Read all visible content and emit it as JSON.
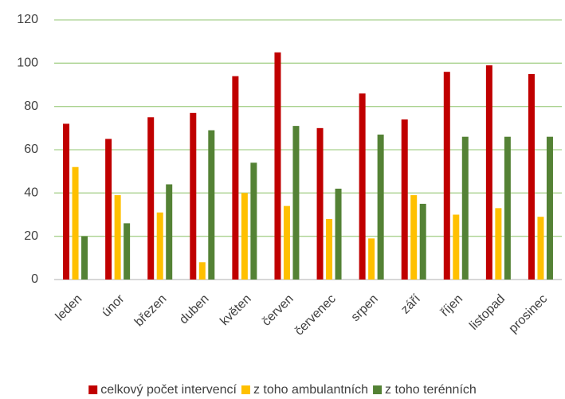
{
  "chart_data": {
    "type": "bar",
    "categories": [
      "leden",
      "únor",
      "březen",
      "duben",
      "květen",
      "červen",
      "červenec",
      "srpen",
      "září",
      "říjen",
      "listopad",
      "prosinec"
    ],
    "series": [
      {
        "name": "celkový počet intervencí",
        "color": "#c00000",
        "values": [
          72,
          65,
          75,
          77,
          94,
          105,
          70,
          86,
          74,
          96,
          99,
          95
        ]
      },
      {
        "name": "z toho ambulantních",
        "color": "#ffc000",
        "values": [
          52,
          39,
          31,
          8,
          40,
          34,
          28,
          19,
          39,
          30,
          33,
          29
        ]
      },
      {
        "name": "z toho terénních",
        "color": "#548235",
        "values": [
          20,
          26,
          44,
          69,
          54,
          71,
          42,
          67,
          35,
          66,
          66,
          66
        ]
      }
    ],
    "ylim": [
      0,
      120
    ],
    "yticks": [
      0,
      20,
      40,
      60,
      80,
      100,
      120
    ],
    "grid": true,
    "legend": "bottom"
  }
}
